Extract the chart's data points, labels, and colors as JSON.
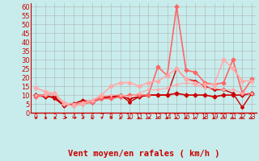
{
  "title": "",
  "xlabel": "Vent moyen/en rafales ( km/h )",
  "xlim": [
    -0.5,
    23.5
  ],
  "ylim": [
    0,
    62
  ],
  "yticks": [
    0,
    5,
    10,
    15,
    20,
    25,
    30,
    35,
    40,
    45,
    50,
    55,
    60
  ],
  "xticks": [
    0,
    1,
    2,
    3,
    4,
    5,
    6,
    7,
    8,
    9,
    10,
    11,
    12,
    13,
    14,
    15,
    16,
    17,
    18,
    19,
    20,
    21,
    22,
    23
  ],
  "background_color": "#c8ecec",
  "grid_color": "#b0b0b0",
  "series": [
    {
      "x": [
        0,
        1,
        2,
        3,
        4,
        5,
        6,
        7,
        8,
        9,
        10,
        11,
        12,
        13,
        14,
        15,
        16,
        17,
        18,
        19,
        20,
        21,
        22,
        23
      ],
      "y": [
        10,
        9,
        9,
        4,
        5,
        7,
        6,
        8,
        9,
        9,
        8,
        9,
        10,
        10,
        10,
        11,
        10,
        10,
        10,
        9,
        10,
        10,
        10,
        11
      ],
      "color": "#cc0000",
      "lw": 1.2,
      "marker": "D",
      "ms": 2.5
    },
    {
      "x": [
        0,
        1,
        2,
        3,
        4,
        5,
        6,
        7,
        8,
        9,
        10,
        11,
        12,
        13,
        14,
        15,
        16,
        17,
        18,
        19,
        20,
        21,
        22,
        23
      ],
      "y": [
        10,
        10,
        8,
        4,
        5,
        6,
        7,
        9,
        9,
        10,
        6,
        9,
        10,
        10,
        10,
        25,
        19,
        18,
        15,
        13,
        13,
        11,
        3,
        11
      ],
      "color": "#cc0000",
      "lw": 1.0,
      "marker": "D",
      "ms": 2.0
    },
    {
      "x": [
        0,
        1,
        2,
        3,
        4,
        5,
        6,
        7,
        8,
        9,
        10,
        11,
        12,
        13,
        14,
        15,
        16,
        17,
        18,
        19,
        20,
        21,
        22,
        23
      ],
      "y": [
        9,
        10,
        11,
        5,
        4,
        5,
        6,
        8,
        8,
        9,
        10,
        10,
        10,
        26,
        21,
        60,
        24,
        23,
        17,
        16,
        17,
        30,
        11,
        19
      ],
      "color": "#ff6666",
      "lw": 1.2,
      "marker": "D",
      "ms": 2.5
    },
    {
      "x": [
        0,
        1,
        2,
        3,
        4,
        5,
        6,
        7,
        8,
        9,
        10,
        11,
        12,
        13,
        14,
        15,
        16,
        17,
        18,
        19,
        20,
        21,
        22,
        23
      ],
      "y": [
        14,
        12,
        11,
        5,
        4,
        5,
        7,
        10,
        15,
        17,
        17,
        15,
        17,
        18,
        21,
        25,
        19,
        17,
        16,
        16,
        30,
        25,
        18,
        18
      ],
      "color": "#ffaaaa",
      "lw": 1.2,
      "marker": "D",
      "ms": 2.5
    },
    {
      "x": [
        0,
        1,
        2,
        3,
        4,
        5,
        6,
        7,
        8,
        9,
        10,
        11,
        12,
        13,
        14,
        15,
        16,
        17,
        18,
        19,
        20,
        21,
        22,
        23
      ],
      "y": [
        10,
        10,
        11,
        6,
        5,
        6,
        7,
        9,
        10,
        10,
        9,
        11,
        13,
        13,
        14,
        16,
        17,
        16,
        14,
        14,
        13,
        13,
        11,
        11
      ],
      "color": "#ffaaaa",
      "lw": 0.8,
      "marker": "D",
      "ms": 1.5
    }
  ],
  "arrow_angles": [
    45,
    45,
    45,
    90,
    90,
    45,
    0,
    45,
    45,
    0,
    0,
    0,
    45,
    45,
    0,
    0,
    0,
    0,
    0,
    0,
    45,
    0,
    315,
    0
  ],
  "xlabel_color": "#cc0000",
  "xlabel_fontsize": 7.5,
  "ytick_fontsize": 6,
  "xtick_fontsize": 5.5
}
